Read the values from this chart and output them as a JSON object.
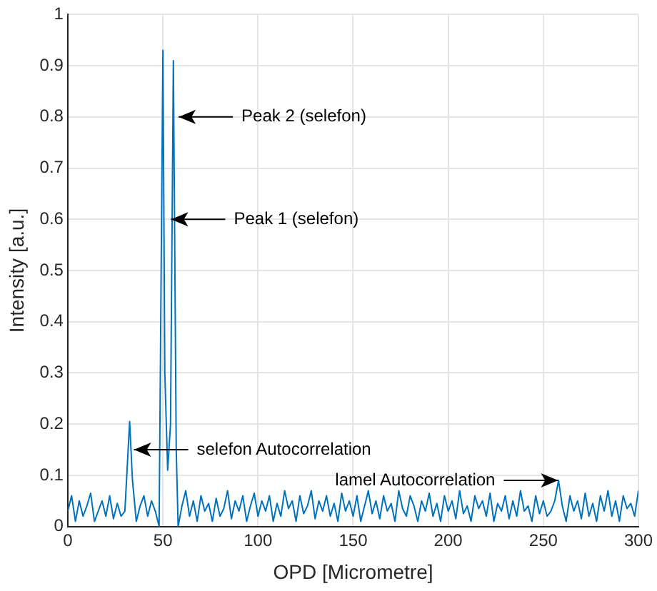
{
  "chart_data": {
    "type": "line",
    "xlabel": "OPD [Micrometre]",
    "ylabel": "Intensity [a.u.]",
    "x": [
      0,
      2,
      4,
      6,
      8,
      10,
      12,
      14,
      16,
      18,
      20,
      22,
      24,
      26,
      28,
      30,
      32.5,
      34,
      36,
      38,
      40,
      42,
      44,
      46,
      48,
      50,
      51,
      52.5,
      54,
      55.5,
      57,
      58,
      60,
      62,
      64,
      66,
      68,
      70,
      72,
      74,
      76,
      78,
      80,
      82,
      84,
      86,
      88,
      90,
      92,
      94,
      96,
      98,
      100,
      102,
      104,
      106,
      108,
      110,
      112,
      114,
      116,
      118,
      120,
      122,
      124,
      126,
      128,
      130,
      132,
      134,
      136,
      138,
      140,
      142,
      144,
      146,
      148,
      150,
      152,
      154,
      156,
      158,
      160,
      162,
      164,
      166,
      168,
      170,
      172,
      174,
      176,
      178,
      180,
      182,
      184,
      186,
      188,
      190,
      192,
      194,
      196,
      198,
      200,
      202,
      204,
      206,
      208,
      210,
      212,
      214,
      216,
      218,
      220,
      222,
      224,
      226,
      228,
      230,
      232,
      234,
      236,
      238,
      240,
      242,
      244,
      246,
      248,
      250,
      252,
      254,
      256,
      258,
      260,
      262,
      264,
      266,
      268,
      270,
      272,
      274,
      276,
      278,
      280,
      282,
      284,
      286,
      288,
      290,
      292,
      294,
      296,
      298,
      300
    ],
    "series": [
      {
        "color": "#0072bd",
        "values": [
          0.03,
          0.06,
          0.01,
          0.05,
          0.02,
          0.04,
          0.065,
          0.01,
          0.03,
          0.05,
          0.02,
          0.06,
          0.015,
          0.045,
          0.02,
          0.03,
          0.205,
          0.09,
          0.01,
          0.04,
          0.06,
          0.02,
          0.05,
          0.03,
          0.0,
          0.93,
          0.3,
          0.11,
          0.2,
          0.91,
          0.15,
          0.0,
          0.04,
          0.07,
          0.02,
          0.05,
          0.01,
          0.06,
          0.03,
          0.045,
          0.01,
          0.055,
          0.02,
          0.035,
          0.07,
          0.015,
          0.05,
          0.03,
          0.06,
          0.01,
          0.04,
          0.065,
          0.02,
          0.05,
          0.03,
          0.06,
          0.01,
          0.045,
          0.02,
          0.07,
          0.035,
          0.05,
          0.01,
          0.06,
          0.025,
          0.04,
          0.07,
          0.015,
          0.05,
          0.03,
          0.06,
          0.02,
          0.045,
          0.01,
          0.065,
          0.03,
          0.05,
          0.02,
          0.06,
          0.01,
          0.04,
          0.07,
          0.025,
          0.05,
          0.015,
          0.06,
          0.03,
          0.045,
          0.01,
          0.07,
          0.035,
          0.02,
          0.06,
          0.04,
          0.01,
          0.05,
          0.03,
          0.065,
          0.02,
          0.045,
          0.01,
          0.06,
          0.03,
          0.05,
          0.015,
          0.07,
          0.025,
          0.04,
          0.01,
          0.06,
          0.035,
          0.05,
          0.02,
          0.065,
          0.01,
          0.045,
          0.03,
          0.06,
          0.015,
          0.05,
          0.02,
          0.07,
          0.03,
          0.04,
          0.01,
          0.06,
          0.025,
          0.05,
          0.02,
          0.03,
          0.05,
          0.09,
          0.04,
          0.01,
          0.06,
          0.03,
          0.05,
          0.015,
          0.065,
          0.02,
          0.045,
          0.01,
          0.06,
          0.03,
          0.07,
          0.02,
          0.05,
          0.01,
          0.06,
          0.035,
          0.045,
          0.02,
          0.07
        ]
      }
    ],
    "xlim": [
      0,
      300
    ],
    "xticks": [
      0,
      50,
      100,
      150,
      200,
      250,
      300
    ],
    "ylim": [
      0,
      1
    ],
    "yticks": [
      0,
      0.1,
      0.2,
      0.3,
      0.4,
      0.5,
      0.6,
      0.7,
      0.8,
      0.9,
      1
    ],
    "grid": true,
    "marker": "none",
    "line_style": "solid",
    "annotations": [
      {
        "text": "Peak 2 (selefon)",
        "x": 56,
        "y": 0.8
      },
      {
        "text": "Peak 1 (selefon)",
        "x": 52,
        "y": 0.6
      },
      {
        "text": "selefon Autocorrelation",
        "x": 32.5,
        "y": 0.15
      },
      {
        "text": "lamel Autocorrelation",
        "x": 260,
        "y": 0.09
      }
    ]
  }
}
